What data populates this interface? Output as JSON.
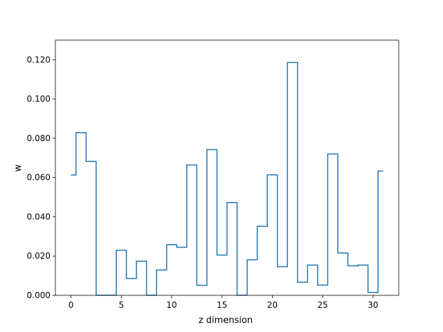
{
  "chart_data": {
    "type": "line",
    "drawstyle": "steps-mid",
    "title": "",
    "xlabel": "z dimension",
    "ylabel": "w",
    "xlim": [
      -1.55,
      32.55
    ],
    "ylim": [
      0,
      0.13
    ],
    "xticks": [
      0,
      5,
      10,
      15,
      20,
      25,
      30
    ],
    "yticks": [
      0.0,
      0.02,
      0.04,
      0.06,
      0.08,
      0.1,
      0.12
    ],
    "xtick_labels": [
      "0",
      "5",
      "10",
      "15",
      "20",
      "25",
      "30"
    ],
    "ytick_labels": [
      "0.000",
      "0.020",
      "0.040",
      "0.060",
      "0.080",
      "0.100",
      "0.120"
    ],
    "grid": false,
    "line_color": "#1f77b4",
    "x": [
      0,
      1,
      2,
      3,
      4,
      5,
      6,
      7,
      8,
      9,
      10,
      11,
      12,
      13,
      14,
      15,
      16,
      17,
      18,
      19,
      20,
      21,
      22,
      23,
      24,
      25,
      26,
      27,
      28,
      29,
      30,
      31
    ],
    "values": [
      0.0613,
      0.0829,
      0.0682,
      0.0001,
      0.0001,
      0.023,
      0.0086,
      0.0174,
      0.0001,
      0.0129,
      0.0258,
      0.0245,
      0.0664,
      0.0051,
      0.0742,
      0.0205,
      0.0473,
      0.0001,
      0.0181,
      0.0352,
      0.0614,
      0.0146,
      0.1186,
      0.0067,
      0.0154,
      0.0052,
      0.072,
      0.0216,
      0.015,
      0.0154,
      0.0015,
      0.0633
    ]
  }
}
